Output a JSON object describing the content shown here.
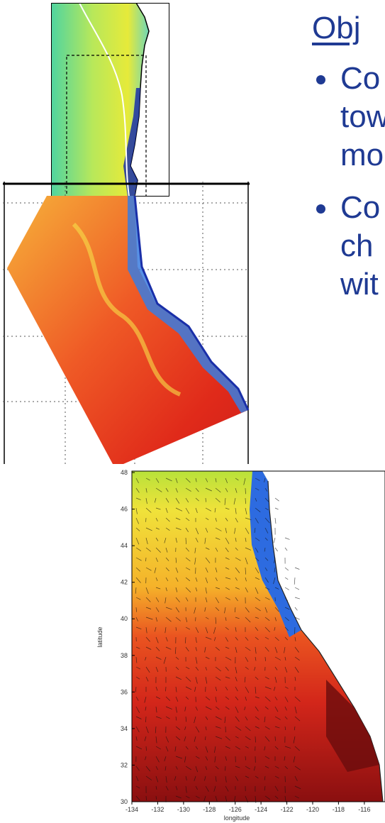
{
  "slide": {
    "heading": "Obj",
    "bullets": [
      {
        "lines": [
          "Co",
          "tow",
          "mo"
        ]
      },
      {
        "lines": [
          "Co",
          "ch",
          "wit"
        ]
      }
    ]
  },
  "bottom_map": {
    "xlabel": "longitude",
    "ylabel": "latitude",
    "x_ticks": [
      "-134",
      "-132",
      "-130",
      "-128",
      "-126",
      "-124",
      "-122",
      "-120",
      "-118",
      "-116"
    ],
    "y_ticks": [
      "48",
      "46",
      "44",
      "42",
      "40",
      "38",
      "36",
      "34",
      "32",
      "30"
    ]
  },
  "colors": {
    "text": "#1f3a93",
    "warm": "#d7301f",
    "cool": "#0a2fae",
    "mid": "#f0e23a"
  }
}
